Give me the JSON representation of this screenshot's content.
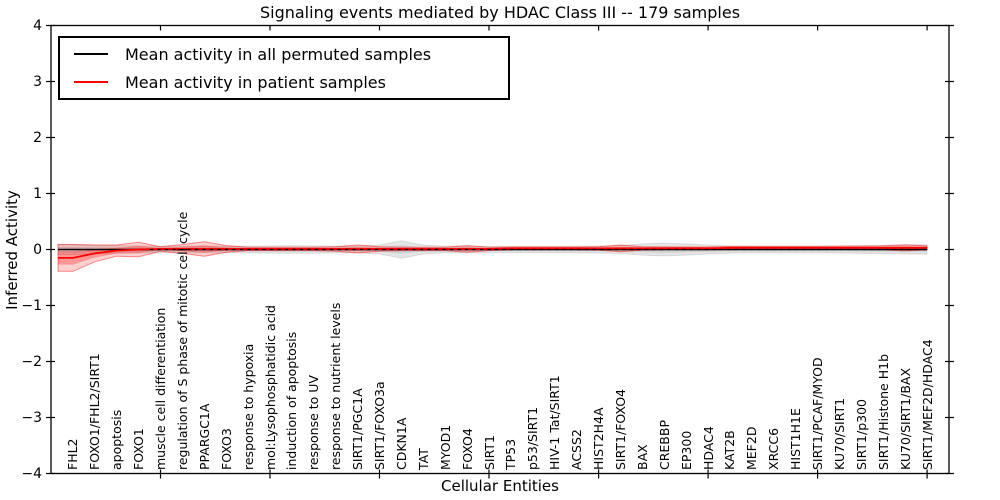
{
  "chart_data": {
    "type": "line",
    "title": "Signaling events mediated by HDAC Class III -- 179 samples",
    "xlabel": "Cellular Entities",
    "ylabel": "Inferred Activity",
    "ylim": [
      -4,
      4
    ],
    "yticks": [
      4,
      3,
      2,
      1,
      0,
      -1,
      -2,
      -3,
      -4
    ],
    "x_major_tick_interval": 5,
    "grid": false,
    "legend": {
      "position": "upper left",
      "entries": [
        {
          "label": "Mean activity in all permuted samples",
          "color": "#000000"
        },
        {
          "label": "Mean activity in patient samples",
          "color": "#ff0000"
        }
      ]
    },
    "categories": [
      "FHL2",
      "FOXO1/FHL2/SIRT1",
      "apoptosis",
      "FOXO1",
      "muscle cell differentiation",
      "regulation of S phase of mitotic cell cycle",
      "PPARGC1A",
      "FOXO3",
      "response to hypoxia",
      "mol:Lysophosphatidic acid",
      "induction of apoptosis",
      "response to UV",
      "response to nutrient levels",
      "SIRT1/PGC1A",
      "SIRT1/FOXO3a",
      "CDKN1A",
      "TAT",
      "MYOD1",
      "FOXO4",
      "SIRT1",
      "TP53",
      "p53/SIRT1",
      "HIV-1 Tat/SIRT1",
      "ACSS2",
      "HIST2H4A",
      "SIRT1/FOXO4",
      "BAX",
      "CREBBP",
      "EP300",
      "HDAC4",
      "KAT2B",
      "MEF2D",
      "XRCC6",
      "HIST1H1E",
      "SIRT1/PCAF/MYOD",
      "KU70/SIRT1",
      "SIRT1/p300",
      "SIRT1/Histone H1b",
      "KU70/SIRT1/BAX",
      "SIRT1/MEF2D/HDAC4"
    ],
    "series": [
      {
        "name": "Mean activity in all permuted samples",
        "line_color": "#000000",
        "band_color": "#000000",
        "band_opacity": 0.1,
        "values": [
          0,
          0,
          0,
          0,
          0,
          0,
          0,
          0,
          0,
          0,
          0,
          0,
          0,
          0,
          0,
          0,
          0,
          0,
          0,
          0,
          0,
          0,
          0,
          0,
          0,
          0,
          0,
          0,
          0,
          0,
          0,
          0,
          0,
          0,
          0,
          0,
          0,
          0,
          0,
          0
        ],
        "band_half_width": [
          0.09,
          0.08,
          0.07,
          0.065,
          0.06,
          0.06,
          0.06,
          0.06,
          0.06,
          0.065,
          0.07,
          0.065,
          0.06,
          0.06,
          0.08,
          0.155,
          0.08,
          0.06,
          0.06,
          0.055,
          0.055,
          0.055,
          0.055,
          0.06,
          0.065,
          0.07,
          0.1,
          0.115,
          0.1,
          0.08,
          0.065,
          0.06,
          0.06,
          0.06,
          0.06,
          0.065,
          0.07,
          0.075,
          0.08,
          0.085
        ]
      },
      {
        "name": "Mean activity in patient samples",
        "line_color": "#ff0000",
        "band_color": "#ff0000",
        "band_opacity": 0.18,
        "values": [
          -0.15,
          -0.07,
          -0.02,
          0,
          0.01,
          0.01,
          0.01,
          0.01,
          0.01,
          0.01,
          0.01,
          0.01,
          0.01,
          0.01,
          0.01,
          0.01,
          0.01,
          0.01,
          0.01,
          0.01,
          0.02,
          0.02,
          0.02,
          0.02,
          0.02,
          0.02,
          0.02,
          0.02,
          0.02,
          0.02,
          0.03,
          0.03,
          0.03,
          0.03,
          0.03,
          0.03,
          0.03,
          0.03,
          0.03,
          0.03
        ],
        "band_half_width": [
          0.24,
          0.15,
          0.1,
          0.13,
          0.04,
          0.08,
          0.13,
          0.06,
          0.03,
          0.03,
          0.03,
          0.03,
          0.04,
          0.07,
          0.04,
          0.03,
          0.03,
          0.03,
          0.06,
          0.03,
          0.025,
          0.025,
          0.025,
          0.025,
          0.03,
          0.06,
          0.03,
          0.025,
          0.025,
          0.025,
          0.025,
          0.025,
          0.025,
          0.025,
          0.025,
          0.03,
          0.03,
          0.035,
          0.055,
          0.035
        ]
      }
    ]
  }
}
